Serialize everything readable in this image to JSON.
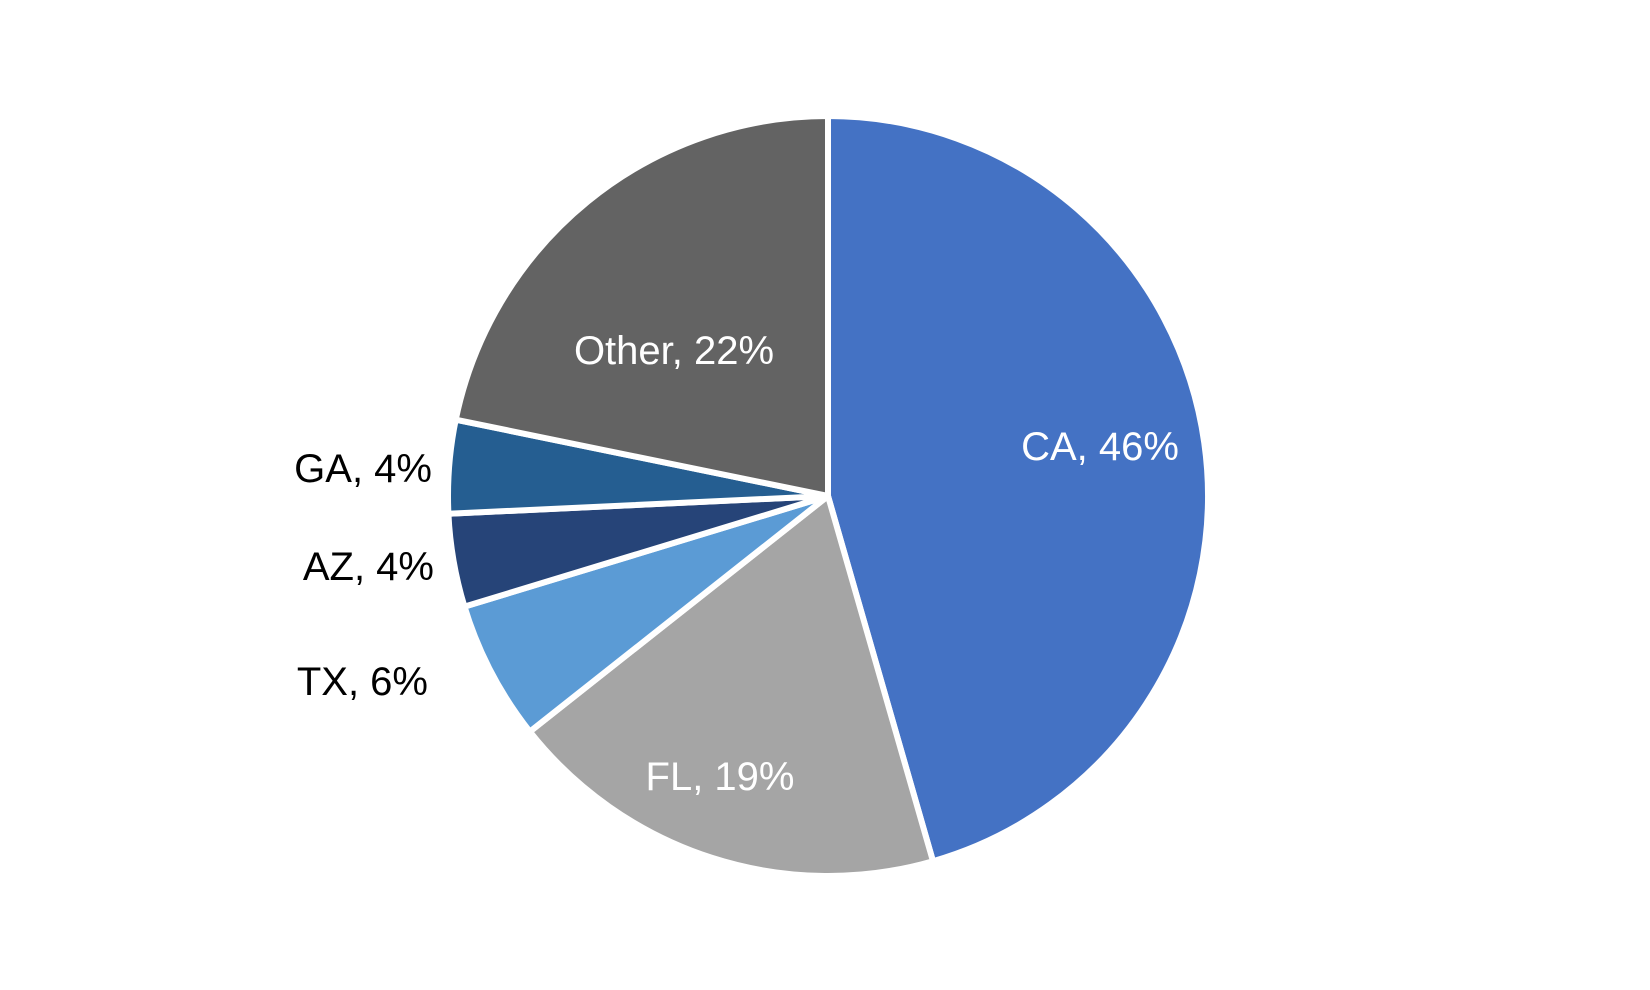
{
  "chart_data": {
    "type": "pie",
    "title": "",
    "start_angle_deg": 0,
    "direction": "clockwise",
    "slices": [
      {
        "label": "CA",
        "value": 46,
        "display": "CA, 46%",
        "color": "#4472C4",
        "label_color": "#ffffff",
        "label_pos": "inside"
      },
      {
        "label": "FL",
        "value": 19,
        "display": "FL, 19%",
        "color": "#A5A5A5",
        "label_color": "#ffffff",
        "label_pos": "inside"
      },
      {
        "label": "TX",
        "value": 6,
        "display": "TX, 6%",
        "color": "#5B9BD5",
        "label_color": "#000000",
        "label_pos": "outside"
      },
      {
        "label": "AZ",
        "value": 4,
        "display": "AZ, 4%",
        "color": "#264478",
        "label_color": "#000000",
        "label_pos": "outside"
      },
      {
        "label": "GA",
        "value": 4,
        "display": "GA, 4%",
        "color": "#255E91",
        "label_color": "#000000",
        "label_pos": "outside"
      },
      {
        "label": "Other",
        "value": 22,
        "display": "Other, 22%",
        "color": "#636363",
        "label_color": "#ffffff",
        "label_pos": "inside"
      }
    ],
    "categories": [
      "CA",
      "FL",
      "TX",
      "AZ",
      "GA",
      "Other"
    ],
    "values": [
      46,
      19,
      6,
      4,
      4,
      22
    ],
    "legend": "none",
    "data_labels": "category name and percentage"
  },
  "labels": {
    "ca": "CA, 46%",
    "fl": "FL, 19%",
    "tx": "TX, 6%",
    "az": "AZ, 4%",
    "ga": "GA, 4%",
    "other": "Other, 22%"
  }
}
